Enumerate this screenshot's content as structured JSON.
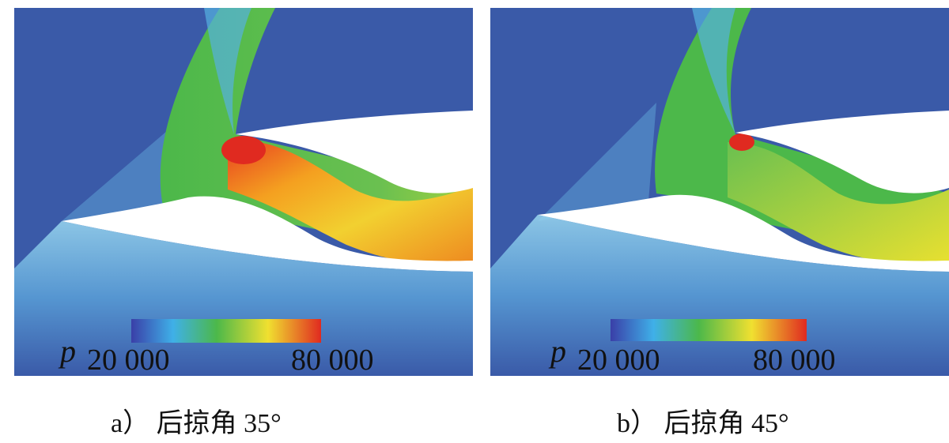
{
  "panels": [
    {
      "caption": "a） 后掠角 35°",
      "colorbar": {
        "variable": "p",
        "min_label": "20 000",
        "max_label": "80 000"
      }
    },
    {
      "caption": "b） 后掠角 45°",
      "colorbar": {
        "variable": "p",
        "min_label": "20 000",
        "max_label": "80 000"
      }
    }
  ],
  "colors": {
    "background_flow": "#3a5aa8",
    "low": "#3b4cc0",
    "cyan": "#40b4e6",
    "green": "#4cb84a",
    "yellow": "#f2d42a",
    "high": "#e23a20"
  }
}
